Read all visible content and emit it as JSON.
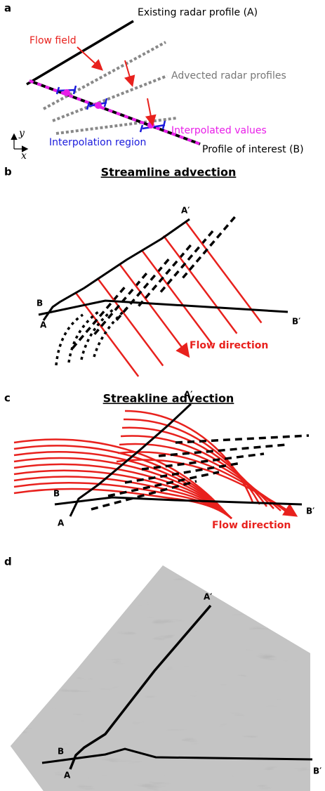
{
  "panel_a": {
    "label": "a",
    "existing_profile": "Existing radar profile (A)",
    "flow_field": "Flow field",
    "advected_profiles": "Advected radar profiles",
    "interpolated_values": "Interpolated values",
    "interpolation_region": "Interpolation region",
    "profile_of_interest": "Profile of interest (B)",
    "axis_y": "y",
    "axis_x": "x"
  },
  "panel_b": {
    "label": "b",
    "title": "Streamline advection",
    "a_prime": "A′",
    "b": "B",
    "a": "A",
    "b_prime": "B′",
    "flow_direction": "Flow direction"
  },
  "panel_c": {
    "label": "c",
    "title": "Streakline advection",
    "a_prime": "A′",
    "b": "B",
    "a": "A",
    "b_prime": "B′",
    "flow_direction": "Flow direction"
  },
  "panel_d": {
    "label": "d",
    "a_prime": "A′",
    "b": "B",
    "a": "A",
    "b_prime": "B′"
  }
}
